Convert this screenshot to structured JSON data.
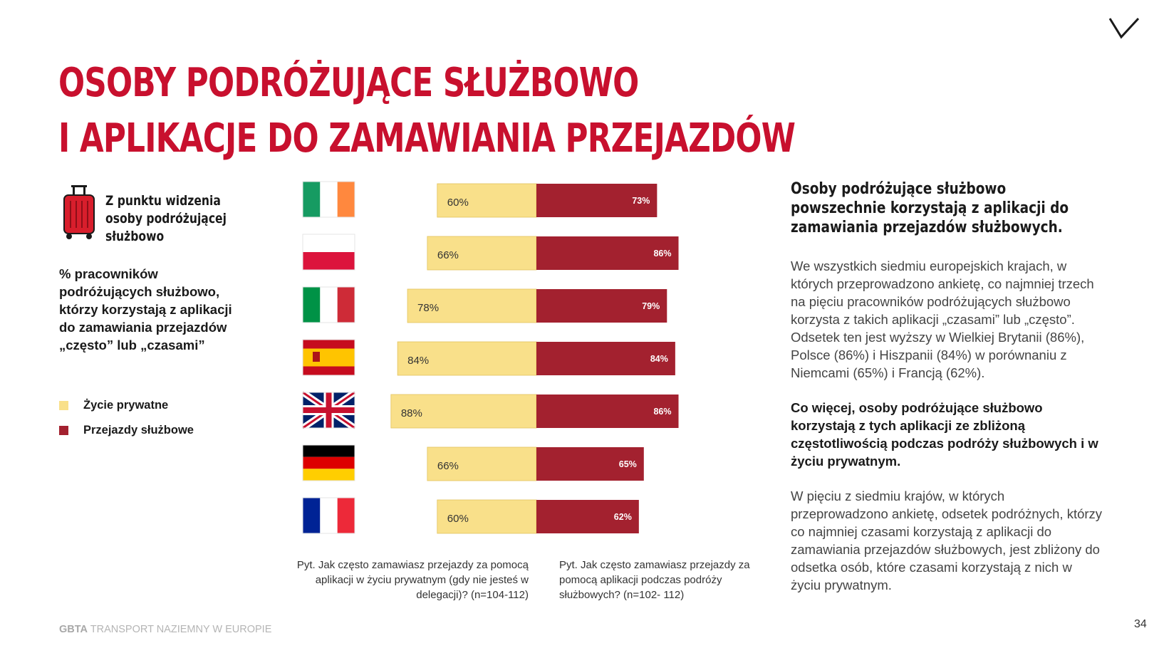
{
  "title": {
    "line1": "OSOBY PODRÓŻUJĄCE SŁUŻBOWO",
    "line2": "I APLIKACJE DO ZAMAWIANIA PRZEJAZDÓW"
  },
  "left": {
    "intro": "Z punktu widzenia\nosoby podróżującej\nsłużbowo",
    "description": "% pracowników podróżujących służbowo, którzy korzystają z aplikacji do zamawiania przejazdów „często” lub „czasami”",
    "legend": [
      {
        "label": "Życie prywatne",
        "color": "#f9e08a"
      },
      {
        "label": "Przejazdy służbowe",
        "color": "#a3212f"
      }
    ]
  },
  "chart_data": {
    "type": "bar",
    "orientation": "horizontal-diverging",
    "categories": [
      "Ireland",
      "Poland",
      "Italy",
      "Spain",
      "United Kingdom",
      "Germany",
      "France"
    ],
    "flag_icons": [
      "ireland-flag-icon",
      "poland-flag-icon",
      "italy-flag-icon",
      "spain-flag-icon",
      "uk-flag-icon",
      "germany-flag-icon",
      "france-flag-icon"
    ],
    "series": [
      {
        "name": "Życie prywatne",
        "color": "#f9e08a",
        "values": [
          60,
          66,
          78,
          84,
          88,
          66,
          60
        ],
        "labels": [
          "60%",
          "66%",
          "78%",
          "84%",
          "88%",
          "66%",
          "60%"
        ]
      },
      {
        "name": "Przejazdy służbowe",
        "color": "#a3212f",
        "values": [
          73,
          86,
          79,
          84,
          86,
          65,
          62
        ],
        "labels": [
          "73%",
          "86%",
          "79%",
          "84%",
          "86%",
          "65%",
          "62%"
        ]
      }
    ],
    "xlim": [
      0,
      100
    ],
    "grid": false,
    "legend": "left",
    "questions": [
      "Pyt. Jak często zamawiasz przejazdy za pomocą aplikacji w życiu prywatnym (gdy nie jesteś w delegacji)? (n=104-112)",
      "Pyt. Jak często zamawiasz przejazdy za pomocą aplikacji podczas podróży służbowych? (n=102- 112)"
    ]
  },
  "right": {
    "headline": "Osoby podróżujące służbowo powszechnie korzystają z aplikacji do zamawiania przejazdów służbowych.",
    "p1": "We wszystkich siedmiu europejskich krajach, w których przeprowadzono ankietę, co najmniej trzech na pięciu pracowników podróżujących służbowo korzysta z takich aplikacji „czasami” lub „często”. Odsetek ten jest wyższy w Wielkiej Brytanii (86%), Polsce (86%) i Hiszpanii (84%) w porównaniu z Niemcami (65%) i Francją (62%).",
    "p2": "Co więcej, osoby podróżujące służbowo korzystają z tych aplikacji ze zbliżoną częstotliwością podczas podróży służbowych i w życiu prywatnym.",
    "p3": "W pięciu z siedmiu krajów, w których przeprowadzono ankietę, odsetek podróżnych, którzy co najmniej czasami korzystają z aplikacji do zamawiania przejazdów służbowych, jest zbliżony do odsetka osób, które czasami korzystają z nich w życiu prywatnym."
  },
  "footer": {
    "brand": "GBTA",
    "text": " TRANSPORT NAZIEMNY W EUROPIE",
    "page": "34"
  },
  "icons": {
    "logo": "v-logo-icon",
    "suitcase": "suitcase-icon"
  }
}
